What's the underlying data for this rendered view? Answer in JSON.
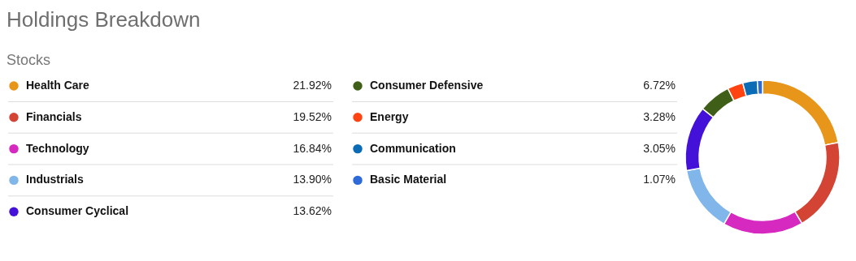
{
  "chart_data": {
    "type": "donut",
    "title": "Holdings Breakdown",
    "subtitle": "Stocks",
    "legend": "left",
    "categories": [
      "Health Care",
      "Financials",
      "Technology",
      "Industrials",
      "Consumer Cyclical",
      "Consumer Defensive",
      "Energy",
      "Communication",
      "Basic Material"
    ],
    "values": [
      21.92,
      19.52,
      16.84,
      13.9,
      13.62,
      6.72,
      3.28,
      3.05,
      1.07
    ],
    "value_labels": [
      "21.92%",
      "19.52%",
      "16.84%",
      "13.90%",
      "13.62%",
      "6.72%",
      "3.28%",
      "3.05%",
      "1.07%"
    ],
    "colors": [
      "#e8961a",
      "#d44435",
      "#d629c0",
      "#80b6ea",
      "#4411d8",
      "#3f5f18",
      "#ff4411",
      "#0c6bb5",
      "#2e6ad8"
    ]
  }
}
